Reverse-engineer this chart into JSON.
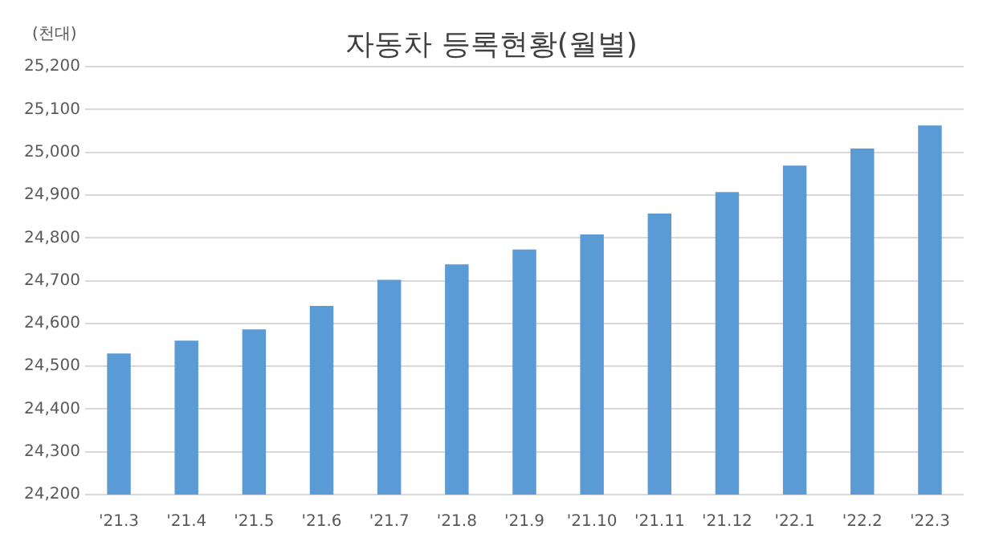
{
  "chart_data": {
    "type": "bar",
    "title": "자동차 등록현황(월별)",
    "ylabel": "(천대)",
    "categories": [
      "'21.3",
      "'21.4",
      "'21.5",
      "'21.6",
      "'21.7",
      "'21.8",
      "'21.9",
      "'21.10",
      "'21.11",
      "'21.12",
      "'22.1",
      "'22.2",
      "'22.3"
    ],
    "values": [
      24530,
      24560,
      24586,
      24641,
      24702,
      24738,
      24773,
      24808,
      24857,
      24907,
      24969,
      25009,
      25063
    ],
    "color": "#5b9bd5",
    "ylim": [
      24200,
      25200
    ],
    "yticks": [
      {
        "value": 24200,
        "label": "24,200"
      },
      {
        "value": 24300,
        "label": "24,300"
      },
      {
        "value": 24400,
        "label": "24,400"
      },
      {
        "value": 24500,
        "label": "24,500"
      },
      {
        "value": 24600,
        "label": "24,600"
      },
      {
        "value": 24700,
        "label": "24,700"
      },
      {
        "value": 24800,
        "label": "24,800"
      },
      {
        "value": 24900,
        "label": "24,900"
      },
      {
        "value": 25000,
        "label": "25,000"
      },
      {
        "value": 25100,
        "label": "25,100"
      },
      {
        "value": 25200,
        "label": "25,200"
      }
    ],
    "grid": "y"
  }
}
